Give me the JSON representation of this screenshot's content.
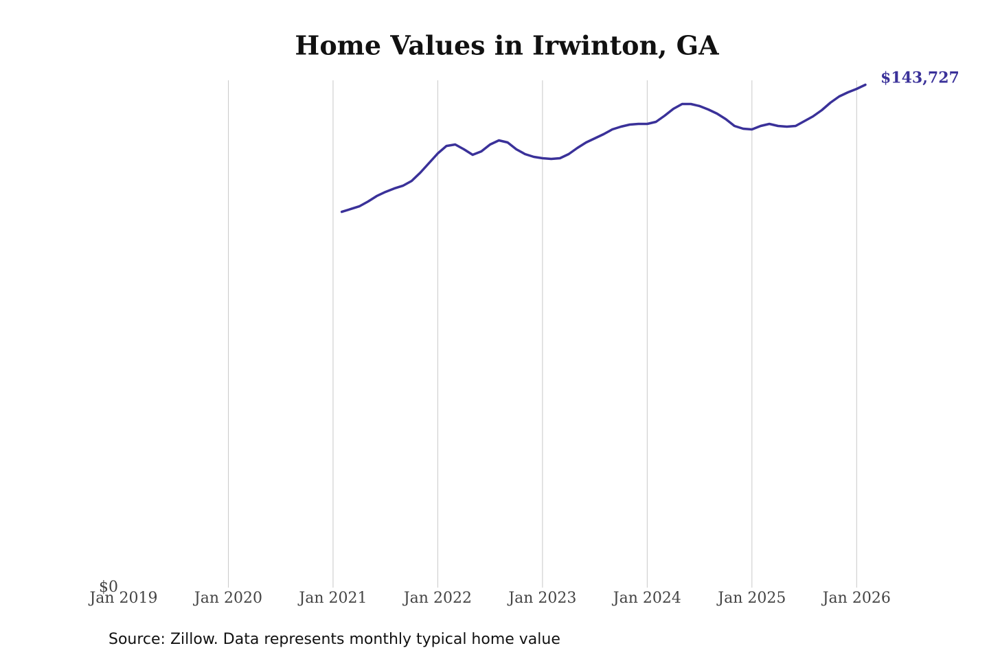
{
  "chart_data": {
    "type": "line",
    "title": "Home Values in Irwinton, GA",
    "source": "Source: Zillow. Data represents monthly typical home value",
    "x": [
      "2021-02",
      "2021-03",
      "2021-04",
      "2021-05",
      "2021-06",
      "2021-07",
      "2021-08",
      "2021-09",
      "2021-10",
      "2021-11",
      "2021-12",
      "2022-01",
      "2022-02",
      "2022-03",
      "2022-04",
      "2022-05",
      "2022-06",
      "2022-07",
      "2022-08",
      "2022-09",
      "2022-10",
      "2022-11",
      "2022-12",
      "2023-01",
      "2023-02",
      "2023-03",
      "2023-04",
      "2023-05",
      "2023-06",
      "2023-07",
      "2023-08",
      "2023-09",
      "2023-10",
      "2023-11",
      "2023-12",
      "2024-01",
      "2024-02",
      "2024-03",
      "2024-04",
      "2024-05",
      "2024-06",
      "2024-07",
      "2024-08",
      "2024-09",
      "2024-10",
      "2024-11",
      "2024-12",
      "2025-01",
      "2025-02",
      "2025-03",
      "2025-04",
      "2025-05",
      "2025-06",
      "2025-07",
      "2025-08",
      "2025-09",
      "2025-10",
      "2025-11",
      "2025-12",
      "2026-01",
      "2026-02"
    ],
    "series": [
      {
        "color": "#3a3199",
        "values": [
          107400,
          108190,
          108980,
          110350,
          111920,
          113100,
          114080,
          114870,
          116240,
          118600,
          121350,
          124100,
          126250,
          126650,
          125280,
          123710,
          124690,
          126650,
          127830,
          127240,
          125280,
          123900,
          123120,
          122730,
          122530,
          122730,
          123900,
          125670,
          127240,
          128420,
          129590,
          130970,
          131750,
          132340,
          132540,
          132540,
          133120,
          134890,
          136850,
          138230,
          138230,
          137640,
          136660,
          135480,
          133910,
          131950,
          131160,
          130970,
          131950,
          132540,
          131950,
          131750,
          131950,
          133320,
          134690,
          136460,
          138620,
          140390,
          141570,
          142550,
          143727
        ],
        "value_labels": [
          null,
          null,
          null,
          null,
          null,
          null,
          null,
          null,
          null,
          null,
          null,
          null,
          null,
          null,
          null,
          null,
          null,
          null,
          null,
          null,
          null,
          null,
          null,
          null,
          null,
          null,
          null,
          null,
          null,
          null,
          null,
          null,
          null,
          null,
          null,
          null,
          null,
          null,
          null,
          null,
          null,
          null,
          null,
          null,
          null,
          null,
          null,
          null,
          null,
          null,
          null,
          null,
          null,
          null,
          null,
          null,
          null,
          null,
          null,
          null,
          "$143,727"
        ]
      }
    ],
    "xlim": [
      "2019-01",
      "2026-02"
    ],
    "xticks": [
      {
        "value": "2019-01",
        "label": "Jan 2019"
      },
      {
        "value": "2020-01",
        "label": "Jan 2020"
      },
      {
        "value": "2021-01",
        "label": "Jan 2021"
      },
      {
        "value": "2022-01",
        "label": "Jan 2022"
      },
      {
        "value": "2023-01",
        "label": "Jan 2023"
      },
      {
        "value": "2024-01",
        "label": "Jan 2024"
      },
      {
        "value": "2025-01",
        "label": "Jan 2025"
      },
      {
        "value": "2026-01",
        "label": "Jan 2026"
      }
    ],
    "ylim": [
      0,
      145000
    ],
    "yticks": [
      {
        "value": 0,
        "label": "$0"
      }
    ],
    "grid": true
  }
}
